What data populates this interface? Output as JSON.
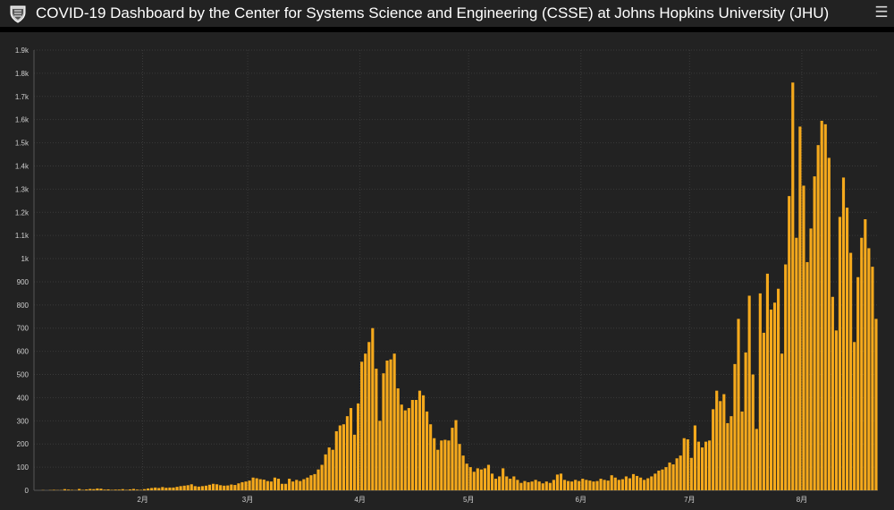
{
  "header": {
    "title": "COVID-19 Dashboard by the Center for Systems Science and Engineering (CSSE) at Johns Hopkins University (JHU)",
    "logo_icon": "jhu-shield-icon",
    "menu_icon": "hamburger-menu-icon"
  },
  "colors": {
    "bar": "#f5a91c",
    "background": "#222222",
    "grid": "#3a3a3a",
    "text": "#cfcfcf"
  },
  "chart_data": {
    "type": "bar",
    "title": "",
    "xlabel": "",
    "ylabel": "",
    "ylim": [
      0,
      1900
    ],
    "yticks": [
      {
        "value": 0,
        "label": "0"
      },
      {
        "value": 100,
        "label": "100"
      },
      {
        "value": 200,
        "label": "200"
      },
      {
        "value": 300,
        "label": "300"
      },
      {
        "value": 400,
        "label": "400"
      },
      {
        "value": 500,
        "label": "500"
      },
      {
        "value": 600,
        "label": "600"
      },
      {
        "value": 700,
        "label": "700"
      },
      {
        "value": 800,
        "label": "800"
      },
      {
        "value": 900,
        "label": "900"
      },
      {
        "value": 1000,
        "label": "1k"
      },
      {
        "value": 1100,
        "label": "1.1k"
      },
      {
        "value": 1200,
        "label": "1.2k"
      },
      {
        "value": 1300,
        "label": "1.3k"
      },
      {
        "value": 1400,
        "label": "1.4k"
      },
      {
        "value": 1500,
        "label": "1.5k"
      },
      {
        "value": 1600,
        "label": "1.6k"
      },
      {
        "value": 1700,
        "label": "1.7k"
      },
      {
        "value": 1800,
        "label": "1.8k"
      },
      {
        "value": 1900,
        "label": "1.9k"
      }
    ],
    "xticks": [
      {
        "index": 30,
        "label": "2月"
      },
      {
        "index": 59,
        "label": "3月"
      },
      {
        "index": 90,
        "label": "4月"
      },
      {
        "index": 120,
        "label": "5月"
      },
      {
        "index": 151,
        "label": "6月"
      },
      {
        "index": 181,
        "label": "7月"
      },
      {
        "index": 212,
        "label": "8月"
      }
    ],
    "grid": true,
    "legend": "none",
    "values": [
      0,
      0,
      1,
      0,
      1,
      2,
      1,
      1,
      5,
      3,
      2,
      1,
      6,
      2,
      4,
      6,
      5,
      8,
      7,
      3,
      4,
      2,
      3,
      3,
      5,
      2,
      4,
      6,
      3,
      2,
      5,
      8,
      10,
      12,
      10,
      14,
      11,
      12,
      12,
      15,
      18,
      20,
      22,
      26,
      18,
      16,
      18,
      20,
      24,
      28,
      26,
      22,
      20,
      21,
      25,
      23,
      30,
      35,
      38,
      42,
      55,
      52,
      48,
      46,
      40,
      38,
      55,
      50,
      28,
      28,
      50,
      38,
      45,
      40,
      48,
      55,
      65,
      70,
      90,
      110,
      155,
      185,
      175,
      255,
      280,
      285,
      320,
      355,
      240,
      375,
      555,
      590,
      640,
      700,
      525,
      300,
      505,
      560,
      565,
      590,
      440,
      370,
      345,
      355,
      390,
      390,
      430,
      410,
      340,
      285,
      225,
      175,
      215,
      218,
      215,
      270,
      303,
      200,
      150,
      115,
      100,
      80,
      95,
      90,
      95,
      110,
      72,
      50,
      60,
      95,
      60,
      50,
      60,
      45,
      32,
      40,
      35,
      38,
      45,
      38,
      30,
      38,
      32,
      45,
      68,
      72,
      45,
      40,
      38,
      45,
      40,
      50,
      45,
      42,
      38,
      40,
      50,
      45,
      42,
      65,
      55,
      45,
      48,
      60,
      52,
      70,
      62,
      55,
      45,
      52,
      60,
      72,
      85,
      90,
      100,
      120,
      112,
      138,
      150,
      225,
      220,
      140,
      280,
      210,
      185,
      210,
      215,
      350,
      430,
      385,
      415,
      290,
      320,
      545,
      740,
      340,
      595,
      840,
      500,
      265,
      850,
      680,
      935,
      780,
      810,
      870,
      590,
      975,
      1270,
      1760,
      1090,
      1570,
      1315,
      985,
      1130,
      1355,
      1490,
      1595,
      1580,
      1435,
      835,
      690,
      1180,
      1350,
      1220,
      1025,
      640,
      920,
      1090,
      1170,
      1045,
      965,
      740
    ]
  }
}
